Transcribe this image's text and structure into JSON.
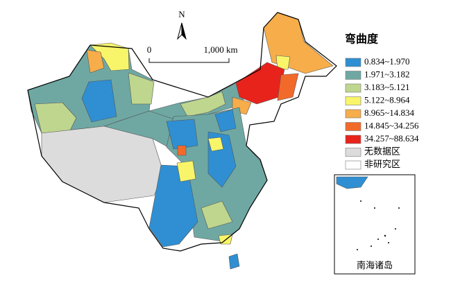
{
  "map": {
    "north_arrow": "N",
    "scale_bar": {
      "start": "0",
      "end": "1,000 km"
    },
    "legend": {
      "title": "弯曲度",
      "items": [
        {
          "label": "0.834~1.970",
          "color": "#2f8fd2"
        },
        {
          "label": "1.971~3.182",
          "color": "#6fa8a3"
        },
        {
          "label": "3.183~5.121",
          "color": "#bfd68e"
        },
        {
          "label": "5.122~8.964",
          "color": "#f8f56a"
        },
        {
          "label": "8.965~14.834",
          "color": "#f6ad4a"
        },
        {
          "label": "14.845~34.256",
          "color": "#f26a2a"
        },
        {
          "label": "34.257~88.634",
          "color": "#e8231c"
        },
        {
          "label": "无数据区",
          "color": "#dcdcdc"
        },
        {
          "label": "非研究区",
          "color": "#ffffff"
        }
      ]
    },
    "inset_label": "南海诸岛"
  }
}
